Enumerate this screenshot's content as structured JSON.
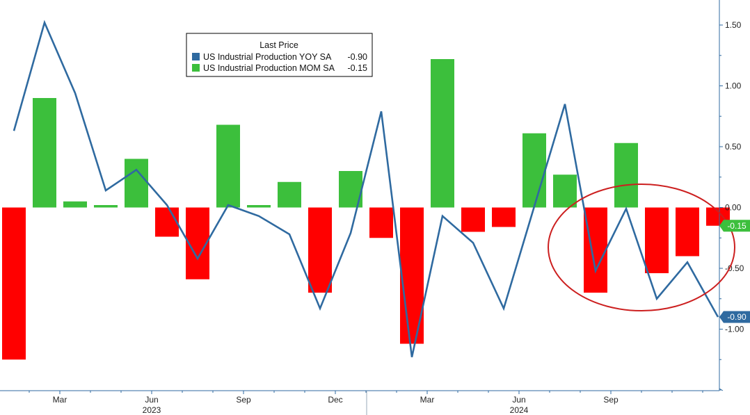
{
  "chart_data": {
    "type": "bar+line",
    "title": "",
    "legend": {
      "title": "Last Price",
      "placement": "top-center",
      "entries": [
        {
          "name": "US Industrial Production YOY SA",
          "last": "-0.90",
          "color": "#2f6aa0"
        },
        {
          "name": "US Industrial Production MOM SA",
          "last": "-0.15",
          "color": "#3cbf3c"
        }
      ]
    },
    "x_ticks": [
      {
        "label": "Mar",
        "index": 2
      },
      {
        "label": "Jun",
        "index": 5
      },
      {
        "label": "Sep",
        "index": 8
      },
      {
        "label": "Dec",
        "index": 11
      },
      {
        "label": "Mar",
        "index": 14
      },
      {
        "label": "Jun",
        "index": 17
      },
      {
        "label": "Sep",
        "index": 20
      }
    ],
    "year_labels": [
      {
        "label": "2023",
        "index": 5
      },
      {
        "label": "2024",
        "index": 17
      }
    ],
    "y_axis": {
      "position": "right",
      "ylim": [
        -1.5,
        1.7
      ],
      "ticks": [
        "1.50",
        "1.00",
        "0.50",
        "0.00",
        "-0.50",
        "-1.00"
      ]
    },
    "series": [
      {
        "name": "US Industrial Production MOM SA",
        "type": "bar",
        "positive_color": "#3cbf3c",
        "negative_color": "#ff0000",
        "values": [
          -1.25,
          0.9,
          0.05,
          0.02,
          0.4,
          -0.24,
          -0.59,
          0.68,
          0.02,
          0.21,
          -0.7,
          0.3,
          -0.25,
          -1.12,
          1.22,
          -0.2,
          -0.16,
          0.61,
          0.27,
          -0.7,
          0.53,
          -0.54,
          -0.4,
          -0.15
        ]
      },
      {
        "name": "US Industrial Production YOY SA",
        "type": "line",
        "color": "#2f6aa0",
        "values": [
          0.63,
          1.52,
          0.94,
          0.14,
          0.31,
          0.02,
          -0.42,
          0.02,
          -0.07,
          -0.22,
          -0.83,
          -0.21,
          0.79,
          -1.23,
          -0.07,
          -0.29,
          -0.83,
          0.01,
          0.85,
          -0.52,
          -0.01,
          -0.75,
          -0.45,
          -0.9
        ]
      }
    ],
    "badges": [
      {
        "text": "-0.15",
        "value": -0.15,
        "color": "#3cbf3c"
      },
      {
        "text": "-0.90",
        "value": -0.9,
        "color": "#2f6aa0"
      }
    ],
    "annotation": {
      "shape": "ellipse",
      "color": "#cc1f1f",
      "covers_indices": [
        19,
        23
      ]
    }
  }
}
